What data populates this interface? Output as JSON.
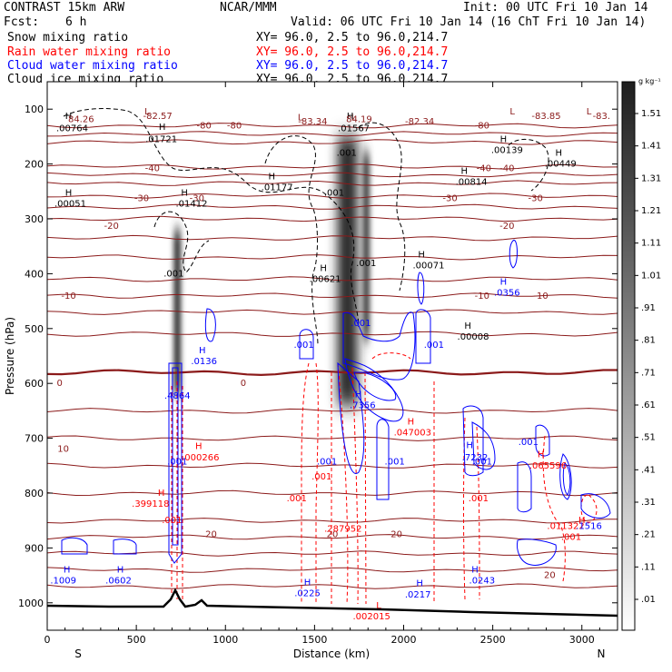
{
  "header": {
    "title": "CONTRAST 15km ARW",
    "center": "NCAR/MMM",
    "init": "Init: 00 UTC Fri 10 Jan 14",
    "fcst_label": "Fcst:",
    "fcst_value": "6 h",
    "valid": "Valid: 06 UTC Fri 10 Jan 14 (16 ChT Fri 10 Jan 14)"
  },
  "fields": [
    {
      "name": "Snow mixing ratio",
      "xy": "XY=  96.0,  2.5 to  96.0,214.7",
      "color": "#000000"
    },
    {
      "name": "Rain water mixing ratio",
      "xy": "XY=  96.0,  2.5 to  96.0,214.7",
      "color": "#ff0000"
    },
    {
      "name": "Cloud water mixing ratio",
      "xy": "XY=  96.0,  2.5 to  96.0,214.7",
      "color": "#0000ff"
    },
    {
      "name": "Cloud ice mixing ratio",
      "xy": "XY=  96.0,  2.5 to  96.0,214.7",
      "color": "#000000"
    }
  ],
  "colors": {
    "temperature": "#8b1a1a",
    "rain": "#ff0000",
    "cloud_water": "#0000ff",
    "ice": "#000000",
    "terrain": "#000000"
  },
  "chart_data": {
    "type": "heatmap",
    "xlabel": "Distance (km)",
    "ylabel": "Pressure (hPa)",
    "xlim": [
      0,
      3200
    ],
    "ylim": [
      1050,
      50
    ],
    "x_ticks": [
      0,
      500,
      1000,
      1500,
      2000,
      2500,
      3000
    ],
    "y_ticks": [
      100,
      200,
      300,
      400,
      500,
      600,
      700,
      800,
      900,
      1000
    ],
    "direction_labels": {
      "left": "S",
      "right": "N"
    },
    "colorbar": {
      "unit": "g kg⁻¹",
      "ticks": [
        "1.51",
        "1.41",
        "1.31",
        "1.21",
        "1.11",
        "1.01",
        ".91",
        ".81",
        ".71",
        ".61",
        ".51",
        ".41",
        ".31",
        ".21",
        ".11",
        ".01"
      ]
    },
    "snow_columns": [
      {
        "x": 730,
        "p_top": 320,
        "p_bottom": 620,
        "max": 1.2
      },
      {
        "x": 1685,
        "p_top": 150,
        "p_bottom": 640,
        "max": 1.51
      },
      {
        "x": 1790,
        "p_top": 180,
        "p_bottom": 520,
        "max": 0.9
      }
    ],
    "isotherms": [
      {
        "t": -80,
        "p": 130
      },
      {
        "t": -80,
        "p": 145
      },
      {
        "t": -80,
        "p": 160
      },
      {
        "t": -40,
        "p": 205
      },
      {
        "t": -40,
        "p": 220
      },
      {
        "t": -40,
        "p": 235
      },
      {
        "t": -30,
        "p": 258
      },
      {
        "t": -30,
        "p": 278
      },
      {
        "t": -20,
        "p": 300
      },
      {
        "t": -20,
        "p": 335
      },
      {
        "t": -10,
        "p": 370
      },
      {
        "t": -10,
        "p": 410
      },
      {
        "t": -10,
        "p": 440
      },
      {
        "t": -10,
        "p": 470
      },
      {
        "t": 0,
        "p": 510
      },
      {
        "t": 0,
        "p": 580
      },
      {
        "t": 10,
        "p": 650
      },
      {
        "t": 10,
        "p": 700
      },
      {
        "t": 10,
        "p": 750
      },
      {
        "t": 10,
        "p": 800
      },
      {
        "t": 20,
        "p": 850
      },
      {
        "t": 20,
        "p": 880
      },
      {
        "t": 20,
        "p": 910
      },
      {
        "t": 20,
        "p": 940
      },
      {
        "t": 20,
        "p": 970
      }
    ],
    "contour_labels": [
      {
        "text": "-80",
        "x": 880,
        "p": 135,
        "series": "temperature"
      },
      {
        "text": "-80",
        "x": 1050,
        "p": 135,
        "series": "temperature"
      },
      {
        "text": "-80",
        "x": 2440,
        "p": 135,
        "series": "temperature"
      },
      {
        "text": "-40",
        "x": 590,
        "p": 213,
        "series": "temperature"
      },
      {
        "text": "-40",
        "x": 2580,
        "p": 213,
        "series": "temperature"
      },
      {
        "text": "-40",
        "x": 2450,
        "p": 213,
        "series": "temperature"
      },
      {
        "text": "-30",
        "x": 530,
        "p": 268,
        "series": "temperature"
      },
      {
        "text": "-30",
        "x": 840,
        "p": 268,
        "series": "temperature"
      },
      {
        "text": "-30",
        "x": 2260,
        "p": 268,
        "series": "temperature"
      },
      {
        "text": "-30",
        "x": 2740,
        "p": 268,
        "series": "temperature"
      },
      {
        "text": "-20",
        "x": 360,
        "p": 318,
        "series": "temperature"
      },
      {
        "text": "-20",
        "x": 2580,
        "p": 318,
        "series": "temperature"
      },
      {
        "text": "-10",
        "x": 120,
        "p": 446,
        "series": "temperature"
      },
      {
        "text": "-10",
        "x": 2440,
        "p": 446,
        "series": "temperature"
      },
      {
        "text": "-10",
        "x": 2770,
        "p": 446,
        "series": "temperature"
      },
      {
        "text": "0",
        "x": 70,
        "p": 605,
        "series": "temperature"
      },
      {
        "text": "0",
        "x": 1100,
        "p": 605,
        "series": "temperature"
      },
      {
        "text": "10",
        "x": 90,
        "p": 725,
        "series": "temperature"
      },
      {
        "text": "20",
        "x": 920,
        "p": 880,
        "series": "temperature"
      },
      {
        "text": "20",
        "x": 1600,
        "p": 880,
        "series": "temperature"
      },
      {
        "text": "20",
        "x": 1960,
        "p": 880,
        "series": "temperature"
      },
      {
        "text": "20",
        "x": 2820,
        "p": 955,
        "series": "temperature"
      },
      {
        "text": ".001",
        "x": 1440,
        "p": 535,
        "series": "cloud_water"
      },
      {
        "text": ".001",
        "x": 1760,
        "p": 495,
        "series": "cloud_water"
      },
      {
        "text": ".001",
        "x": 2170,
        "p": 535,
        "series": "cloud_water"
      },
      {
        "text": ".001",
        "x": 730,
        "p": 748,
        "series": "cloud_water"
      },
      {
        "text": ".001",
        "x": 1570,
        "p": 748,
        "series": "cloud_water"
      },
      {
        "text": ".001",
        "x": 1950,
        "p": 748,
        "series": "cloud_water"
      },
      {
        "text": ".001",
        "x": 2440,
        "p": 748,
        "series": "cloud_water"
      },
      {
        "text": ".001",
        "x": 2700,
        "p": 712,
        "series": "cloud_water"
      },
      {
        "text": ".001",
        "x": 1540,
        "p": 775,
        "series": "rain"
      },
      {
        "text": ".001",
        "x": 1400,
        "p": 815,
        "series": "rain"
      },
      {
        "text": ".001",
        "x": 2420,
        "p": 815,
        "series": "rain"
      },
      {
        "text": ".001",
        "x": 700,
        "p": 855,
        "series": "rain"
      },
      {
        "text": ".001",
        "x": 2940,
        "p": 885,
        "series": "rain"
      },
      {
        "text": ".001",
        "x": 1680,
        "p": 185,
        "series": "ice"
      },
      {
        "text": ".001",
        "x": 1610,
        "p": 258,
        "series": "ice"
      },
      {
        "text": ".001",
        "x": 1790,
        "p": 386,
        "series": "ice"
      },
      {
        "text": ".001",
        "x": 710,
        "p": 405,
        "series": "ice"
      },
      {
        "text": "L",
        "x": 560,
        "p": 110,
        "series": "temperature"
      },
      {
        "text": "-82.57",
        "x": 620,
        "p": 118,
        "series": "temperature"
      },
      {
        "text": "L",
        "x": 1420,
        "p": 120,
        "series": "temperature"
      },
      {
        "text": "-83.34",
        "x": 1490,
        "p": 128,
        "series": "temperature"
      },
      {
        "text": "L",
        "x": 1720,
        "p": 120,
        "series": "temperature"
      },
      {
        "text": "-82.34",
        "x": 2090,
        "p": 128,
        "series": "temperature"
      },
      {
        "text": "L",
        "x": 2610,
        "p": 110,
        "series": "temperature"
      },
      {
        "text": "-83.85",
        "x": 2800,
        "p": 118,
        "series": "temperature"
      },
      {
        "text": "L",
        "x": 3040,
        "p": 110,
        "series": "temperature"
      },
      {
        "text": "-83.",
        "x": 3110,
        "p": 118,
        "series": "temperature"
      },
      {
        "text": "H",
        "x": 120,
        "p": 118,
        "series": "ice"
      },
      {
        "text": "84.26",
        "x": 190,
        "p": 124,
        "series": "temperature"
      },
      {
        "text": ".00764",
        "x": 140,
        "p": 140,
        "series": "ice"
      },
      {
        "text": "H",
        "x": 645,
        "p": 138,
        "series": "ice"
      },
      {
        "text": ".01721",
        "x": 640,
        "p": 160,
        "series": "ice"
      },
      {
        "text": "H",
        "x": 1700,
        "p": 118,
        "series": "ice"
      },
      {
        "text": "84.19",
        "x": 1750,
        "p": 124,
        "series": "temperature"
      },
      {
        "text": ".01567",
        "x": 1720,
        "p": 140,
        "series": "ice"
      },
      {
        "text": "H",
        "x": 2560,
        "p": 160,
        "series": "ice"
      },
      {
        "text": ".00139",
        "x": 2580,
        "p": 180,
        "series": "ice"
      },
      {
        "text": "H",
        "x": 2870,
        "p": 185,
        "series": "ice"
      },
      {
        "text": ".00449",
        "x": 2880,
        "p": 205,
        "series": "ice"
      },
      {
        "text": "H",
        "x": 1260,
        "p": 228,
        "series": "ice"
      },
      {
        "text": ".01177",
        "x": 1290,
        "p": 248,
        "series": "ice"
      },
      {
        "text": "H",
        "x": 2340,
        "p": 218,
        "series": "ice"
      },
      {
        "text": ".00814",
        "x": 2380,
        "p": 238,
        "series": "ice"
      },
      {
        "text": "H",
        "x": 120,
        "p": 258,
        "series": "ice"
      },
      {
        "text": ".00051",
        "x": 130,
        "p": 278,
        "series": "ice"
      },
      {
        "text": "H",
        "x": 770,
        "p": 258,
        "series": "ice"
      },
      {
        "text": ".01412",
        "x": 810,
        "p": 278,
        "series": "ice"
      },
      {
        "text": "H",
        "x": 2100,
        "p": 370,
        "series": "ice"
      },
      {
        "text": ".00071",
        "x": 2140,
        "p": 390,
        "series": "ice"
      },
      {
        "text": "H",
        "x": 1550,
        "p": 395,
        "series": "ice"
      },
      {
        "text": ".00621",
        "x": 1560,
        "p": 415,
        "series": "ice"
      },
      {
        "text": "H",
        "x": 2360,
        "p": 500,
        "series": "ice"
      },
      {
        "text": ".00008",
        "x": 2390,
        "p": 520,
        "series": "ice"
      },
      {
        "text": "H",
        "x": 2560,
        "p": 420,
        "series": "cloud_water"
      },
      {
        "text": ".0356",
        "x": 2580,
        "p": 440,
        "series": "cloud_water"
      },
      {
        "text": "H",
        "x": 870,
        "p": 545,
        "series": "cloud_water"
      },
      {
        "text": ".0136",
        "x": 880,
        "p": 565,
        "series": "cloud_water"
      },
      {
        "text": ".4864",
        "x": 730,
        "p": 628,
        "series": "cloud_water"
      },
      {
        "text": "H",
        "x": 1745,
        "p": 625,
        "series": "cloud_water"
      },
      {
        "text": ".7356",
        "x": 1770,
        "p": 645,
        "series": "cloud_water"
      },
      {
        "text": "H",
        "x": 2040,
        "p": 675,
        "series": "rain"
      },
      {
        "text": ".047003",
        "x": 2050,
        "p": 695,
        "series": "rain"
      },
      {
        "text": "H",
        "x": 2370,
        "p": 718,
        "series": "cloud_water"
      },
      {
        "text": ".7232",
        "x": 2400,
        "p": 740,
        "series": "cloud_water"
      },
      {
        "text": "H",
        "x": 2770,
        "p": 735,
        "series": "rain"
      },
      {
        "text": ".065596",
        "x": 2810,
        "p": 755,
        "series": "rain"
      },
      {
        "text": "H",
        "x": 850,
        "p": 720,
        "series": "rain"
      },
      {
        "text": ".000266",
        "x": 860,
        "p": 740,
        "series": "rain"
      },
      {
        "text": "H",
        "x": 640,
        "p": 805,
        "series": "rain"
      },
      {
        "text": ".399118",
        "x": 580,
        "p": 825,
        "series": "rain"
      },
      {
        "text": ".287952",
        "x": 1660,
        "p": 870,
        "series": "rain"
      },
      {
        "text": "H",
        "x": 3000,
        "p": 855,
        "series": "rain"
      },
      {
        "text": ".011322",
        "x": 2910,
        "p": 865,
        "series": "rain"
      },
      {
        "text": ".1516",
        "x": 3040,
        "p": 865,
        "series": "cloud_water"
      },
      {
        "text": "H",
        "x": 110,
        "p": 945,
        "series": "cloud_water"
      },
      {
        "text": ".1009",
        "x": 90,
        "p": 965,
        "series": "cloud_water"
      },
      {
        "text": "H",
        "x": 410,
        "p": 945,
        "series": "cloud_water"
      },
      {
        "text": ".0602",
        "x": 400,
        "p": 965,
        "series": "cloud_water"
      },
      {
        "text": "H",
        "x": 1460,
        "p": 968,
        "series": "cloud_water"
      },
      {
        "text": ".0225",
        "x": 1460,
        "p": 988,
        "series": "cloud_water"
      },
      {
        "text": "H",
        "x": 2090,
        "p": 970,
        "series": "cloud_water"
      },
      {
        "text": ".0217",
        "x": 2080,
        "p": 990,
        "series": "cloud_water"
      },
      {
        "text": "H",
        "x": 2400,
        "p": 945,
        "series": "cloud_water"
      },
      {
        "text": ".0243",
        "x": 2440,
        "p": 965,
        "series": "cloud_water"
      },
      {
        "text": "L",
        "x": 1860,
        "p": 1010,
        "series": "rain"
      },
      {
        "text": ".002015",
        "x": 1820,
        "p": 1030,
        "series": "rain"
      }
    ]
  }
}
